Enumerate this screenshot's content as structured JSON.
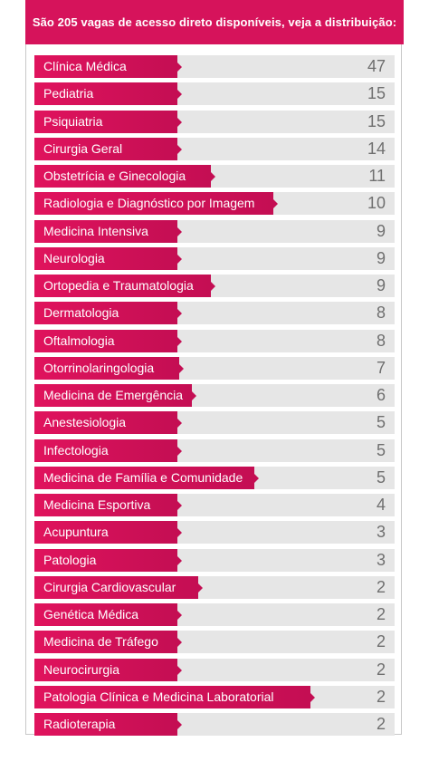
{
  "header": {
    "title": "São 205 vagas de acesso direto disponíveis, veja a distribuição:"
  },
  "chart_data": {
    "type": "bar",
    "orientation": "horizontal",
    "title": "São 205 vagas de acesso direto disponíveis, veja a distribuição:",
    "categories": [
      "Clínica Médica",
      "Pediatria",
      "Psiquiatria",
      "Cirurgia Geral",
      "Obstetrícia e Ginecologia",
      "Radiologia e Diagnóstico por Imagem",
      "Medicina Intensiva",
      "Neurologia",
      "Ortopedia e Traumatologia",
      "Dermatologia",
      "Oftalmologia",
      "Otorrinolaringologia",
      "Medicina de Emergência",
      "Anestesiologia",
      "Infectologia",
      "Medicina de Família e Comunidade",
      "Medicina Esportiva",
      "Acupuntura",
      "Patologia",
      "Cirurgia Cardiovascular",
      "Genética Médica",
      "Medicina de Tráfego",
      "Neurocirurgia",
      "Patologia Clínica e Medicina Laboratorial",
      "Radioterapia"
    ],
    "values": [
      47,
      15,
      15,
      14,
      11,
      10,
      9,
      9,
      9,
      8,
      8,
      7,
      6,
      5,
      5,
      5,
      4,
      3,
      3,
      2,
      2,
      2,
      2,
      2,
      2
    ],
    "value_labels": [
      "47",
      "15",
      "15",
      "14",
      "11",
      "10",
      "9",
      "9",
      "9",
      "8",
      "8",
      "7",
      "6",
      "5",
      "5",
      "5",
      "4",
      "3",
      "3",
      "2",
      "2",
      "2",
      "2",
      "2",
      "2"
    ],
    "colors": {
      "bar": "#d6135b",
      "track": "#e6e6e6",
      "value_text": "#6f6f6f",
      "label_text": "#ffffff"
    }
  }
}
